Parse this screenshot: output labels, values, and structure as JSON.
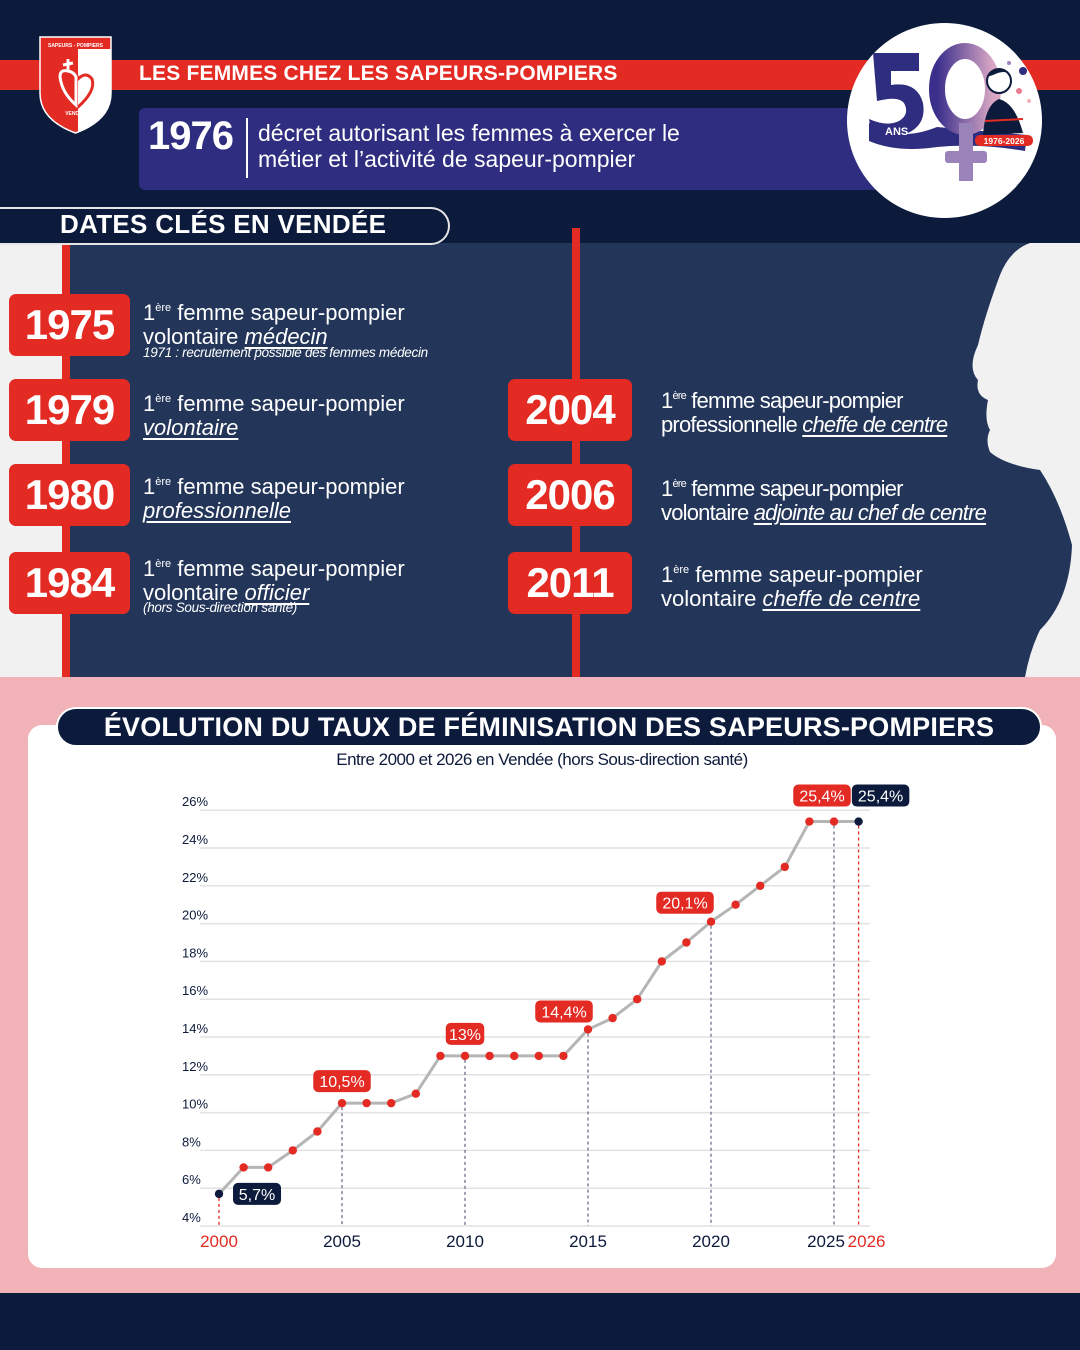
{
  "header": {
    "title": "LES FEMMES CHEZ LES SAPEURS-POMPIERS",
    "decree_year": "1976",
    "decree_text_line1": "décret autorisant les femmes à exercer le",
    "decree_text_line2": "métier et l’activité de sapeur-pompier"
  },
  "logo": {
    "top_text": "SAPEURS - POMPIERS",
    "bottom_text": "VENDÉE"
  },
  "anniversary_badge": {
    "number": "50",
    "unit": "ANS",
    "range": "1976-2026"
  },
  "timeline": {
    "section_title": "DATES CLÉS EN VENDÉE",
    "ordinal_prefix": "1",
    "ordinal_sup": "ère",
    "events": [
      {
        "year": "1975",
        "line1": " femme sapeur-pompier",
        "line2_plain": "volontaire ",
        "line2_em": "médecin",
        "note": "1971 : recrutement possible des femmes médecin"
      },
      {
        "year": "1979",
        "line1": " femme sapeur-pompier",
        "line2_plain": "",
        "line2_em": "volontaire",
        "note": ""
      },
      {
        "year": "1980",
        "line1": " femme sapeur-pompier",
        "line2_plain": "",
        "line2_em": "professionnelle",
        "note": ""
      },
      {
        "year": "1984",
        "line1": " femme sapeur-pompier",
        "line2_plain": "volontaire ",
        "line2_em": "officier",
        "note": "(hors Sous-direction santé)"
      },
      {
        "year": "2004",
        "line1": " femme sapeur-pompier",
        "line2_plain": "professionnelle ",
        "line2_em": "cheffe de centre",
        "note": ""
      },
      {
        "year": "2006",
        "line1": " femme sapeur-pompier",
        "line2_plain": "volontaire ",
        "line2_em": "adjointe au chef de centre",
        "note": ""
      },
      {
        "year": "2011",
        "line1": " femme sapeur-pompier",
        "line2_plain": "volontaire ",
        "line2_em": "cheffe de centre",
        "note": ""
      }
    ]
  },
  "colors": {
    "navy": "#0c1a3b",
    "panel_navy": "#233559",
    "purple": "#2f2d7f",
    "red": "#e32a23",
    "pink": "#f2b3b8",
    "line_gray": "#b5b5b5",
    "grid_gray": "#e2e2e2"
  },
  "chart_data": {
    "type": "line",
    "title": "ÉVOLUTION DU TAUX DE FÉMINISATION DES SAPEURS-POMPIERS",
    "subtitle": "Entre 2000 et 2026 en Vendée (hors Sous-direction santé)",
    "xlabel": "",
    "ylabel": "",
    "ylim": [
      4,
      26
    ],
    "yticks": [
      "4%",
      "6%",
      "8%",
      "10%",
      "12%",
      "14%",
      "16%",
      "18%",
      "20%",
      "22%",
      "24%",
      "26%"
    ],
    "xticks": [
      "2000",
      "2005",
      "2010",
      "2015",
      "2020",
      "2025",
      "2026"
    ],
    "highlighted_xticks": [
      "2000",
      "2026"
    ],
    "grid": true,
    "legend": null,
    "x": [
      2000,
      2001,
      2002,
      2003,
      2004,
      2005,
      2006,
      2007,
      2008,
      2009,
      2010,
      2011,
      2012,
      2013,
      2014,
      2015,
      2016,
      2017,
      2018,
      2019,
      2020,
      2021,
      2022,
      2023,
      2024,
      2025,
      2026
    ],
    "series": [
      {
        "name": "Taux de féminisation (%)",
        "values": [
          5.7,
          7.1,
          7.1,
          8.0,
          9.0,
          10.5,
          10.5,
          10.5,
          11.0,
          13.0,
          13.0,
          13.0,
          13.0,
          13.0,
          13.0,
          14.4,
          15.0,
          16.0,
          18.0,
          19.0,
          20.1,
          21.0,
          22.0,
          23.0,
          25.4,
          25.4,
          25.4
        ]
      }
    ],
    "annotations": [
      {
        "x": 2000,
        "label": "5,7%",
        "style": "navy"
      },
      {
        "x": 2005,
        "label": "10,5%",
        "style": "red"
      },
      {
        "x": 2010,
        "label": "13%",
        "style": "red"
      },
      {
        "x": 2015,
        "label": "14,4%",
        "style": "red"
      },
      {
        "x": 2020,
        "label": "20,1%",
        "style": "red"
      },
      {
        "x": 2025,
        "label": "25,4%",
        "style": "red"
      },
      {
        "x": 2026,
        "label": "25,4%",
        "style": "navy"
      }
    ]
  }
}
